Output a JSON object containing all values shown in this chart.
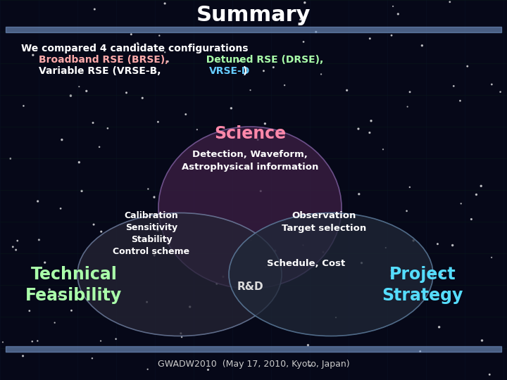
{
  "title": "Summary",
  "title_color": "#ffffff",
  "title_fontsize": 22,
  "background_color": "#060818",
  "footer_text": "GWADW2010  (May 17, 2010, Kyoto, Japan)",
  "header_line_color": "#7799cc",
  "intro_color": "#ffffff",
  "brse_color": "#ffaaaa",
  "drse_color": "#aaffaa",
  "vrse_d_color": "#66ccff",
  "science_label": "Science",
  "science_color": "#ff88aa",
  "tech_label": "Technical\nFeasibility",
  "tech_color": "#aaffaa",
  "project_label": "Project\nStrategy",
  "project_color": "#55ddff",
  "rd_label": "R&D",
  "rd_color": "#dddddd",
  "detect_text": "Detection, Waveform,\nAstrophysical information",
  "detect_color": "#ffffff",
  "calib_text": "Calibration\nSensitivity\nStability\nControl scheme",
  "calib_color": "#ffffff",
  "obs_text": "Observation\nTarget selection",
  "obs_color": "#ffffff",
  "sched_text": "Schedule, Cost",
  "sched_color": "#ffffff",
  "grid_color": "#0a2a18",
  "grid_color2": "#0a1830"
}
